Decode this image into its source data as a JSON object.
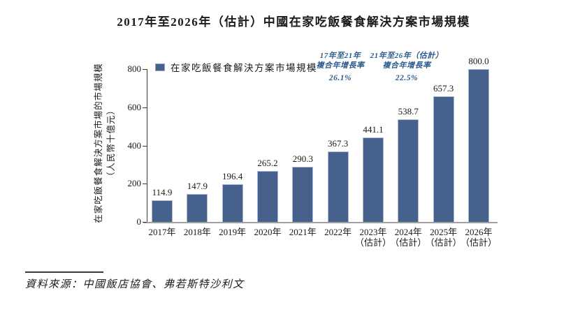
{
  "title": "2017年至2026年（估計）中國在家吃飯餐食解決方案市場規模",
  "legend": {
    "label": "在家吃飯餐食解決方案市場規模"
  },
  "annotations": [
    {
      "line1": "17年至21年",
      "line2": "複合年增長率",
      "value": "26.1%"
    },
    {
      "line1": "21年至26年（估計）",
      "line2": "複合年增長率",
      "value": "22.5%"
    }
  ],
  "y_axis": {
    "label_line1": "在家吃飯餐食解決方案市場的市場規模",
    "label_line2": "（人民幣十億元）",
    "ticks": [
      0,
      200,
      400,
      600,
      800
    ]
  },
  "source": "資料來源：中國飯店協會、弗若斯特沙利文",
  "chart_data": {
    "type": "bar",
    "title": "2017年至2026年（估計）中國在家吃飯餐食解決方案市場規模",
    "series_name": "在家吃飯餐食解決方案市場規模",
    "categories": [
      {
        "label": "2017年",
        "sub": ""
      },
      {
        "label": "2018年",
        "sub": ""
      },
      {
        "label": "2019年",
        "sub": ""
      },
      {
        "label": "2020年",
        "sub": ""
      },
      {
        "label": "2021年",
        "sub": ""
      },
      {
        "label": "2022年",
        "sub": ""
      },
      {
        "label": "2023年",
        "sub": "（估計）"
      },
      {
        "label": "2024年",
        "sub": "（估計）"
      },
      {
        "label": "2025年",
        "sub": "（估計）"
      },
      {
        "label": "2026年",
        "sub": "（估計）"
      }
    ],
    "values": [
      114.9,
      147.9,
      196.4,
      265.2,
      290.3,
      367.3,
      441.1,
      538.7,
      657.3,
      800.0
    ],
    "cagr_2017_2021": "26.1%",
    "cagr_2021_2026": "22.5%",
    "xlabel": "",
    "ylabel": "在家吃飯餐食解決方案市場的市場規模（人民幣十億元）",
    "ylim": [
      0,
      800
    ],
    "grid": false,
    "legend_position": "top-left",
    "bar_color": "#45618C"
  }
}
